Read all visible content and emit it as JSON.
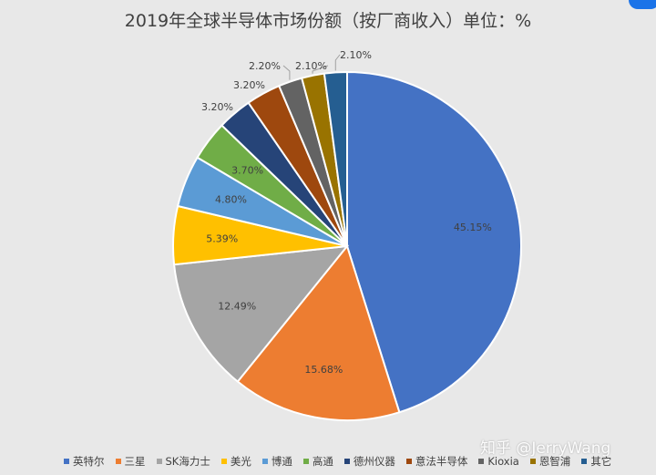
{
  "chart_data": {
    "type": "pie",
    "title": "2019年全球半导体市场份额（按厂商收入）单位：%",
    "slices": [
      {
        "label": "英特尔",
        "value": 45.15,
        "display": "45.15%",
        "color": "#4472c4"
      },
      {
        "label": "三星",
        "value": 15.68,
        "display": "15.68%",
        "color": "#ed7d31"
      },
      {
        "label": "SK海力士",
        "value": 12.49,
        "display": "12.49%",
        "color": "#a5a5a5"
      },
      {
        "label": "美光",
        "value": 5.39,
        "display": "5.39%",
        "color": "#ffc000"
      },
      {
        "label": "博通",
        "value": 4.8,
        "display": "4.80%",
        "color": "#5b9bd5"
      },
      {
        "label": "高通",
        "value": 3.7,
        "display": "3.70%",
        "color": "#70ad47"
      },
      {
        "label": "德州仪器",
        "value": 3.2,
        "display": "3.20%",
        "color": "#264478"
      },
      {
        "label": "意法半导体",
        "value": 3.2,
        "display": "3.20%",
        "color": "#9e480e"
      },
      {
        "label": "Kioxia",
        "value": 2.2,
        "display": "2.20%",
        "color": "#636363"
      },
      {
        "label": "恩智浦",
        "value": 2.1,
        "display": "2.10%",
        "color": "#997300"
      },
      {
        "label": "其它",
        "value": 2.1,
        "display": "2.10%",
        "color": "#255e91"
      }
    ],
    "legend_position": "bottom"
  },
  "watermark": "知乎 @JerryWang"
}
